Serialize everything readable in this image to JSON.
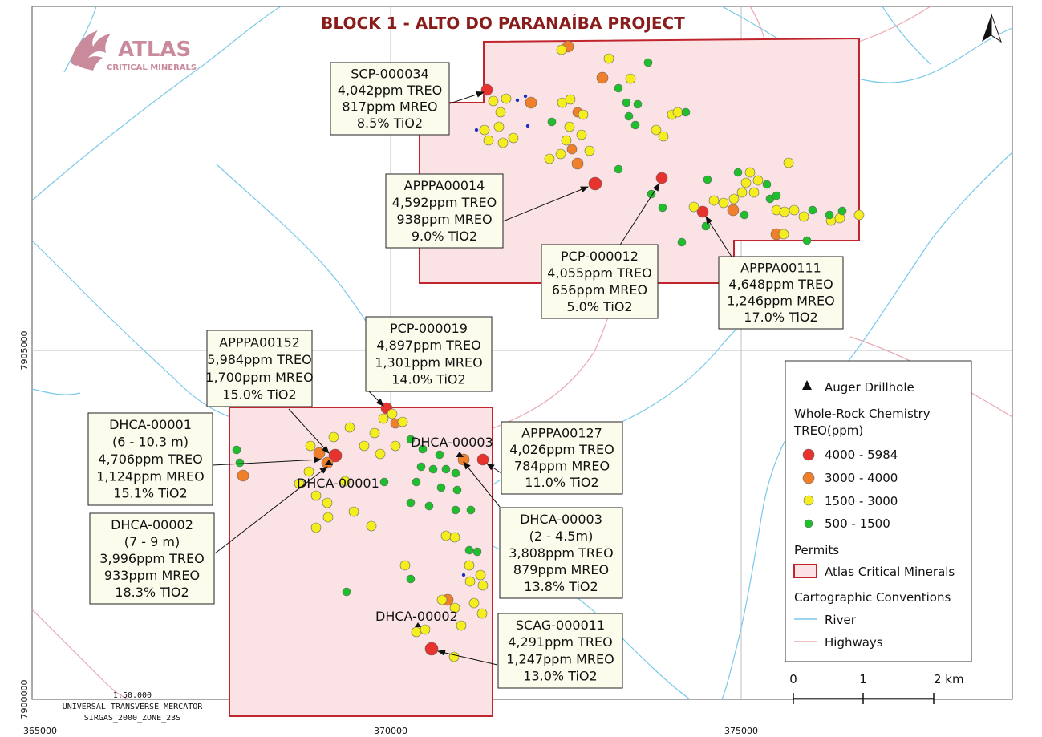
{
  "title": "BLOCK 1 - ALTO DO PARANAÍBA PROJECT",
  "logo": {
    "name": "ATLAS",
    "subtitle": "CRITICAL MINERALS"
  },
  "north_arrow": "north-arrow-icon",
  "axes": {
    "x_ticks": [
      "365000",
      "370000",
      "375000"
    ],
    "y_ticks": [
      "7905000",
      "7900000"
    ]
  },
  "projection": {
    "scale": "1:50.000",
    "system": "UNIVERSAL TRANSVERSE MERCATOR",
    "datum": "SIRGAS_2000_ZONE_23S"
  },
  "scalebar": {
    "labels": [
      "0",
      "1",
      "2 km"
    ]
  },
  "legend": {
    "drillhole": "Auger Drillhole",
    "chem_title_1": "Whole-Rock Chemistry",
    "chem_title_2": "TREO(ppm)",
    "classes": [
      {
        "label": "4000 - 5984",
        "color": "#e8322e"
      },
      {
        "label": "3000 - 4000",
        "color": "#ef7f2a"
      },
      {
        "label": "1500 - 3000",
        "color": "#f5ee1f"
      },
      {
        "label": "500 - 1500",
        "color": "#1ebe2c"
      }
    ],
    "permits_title": "Permits",
    "permit_label": "Atlas Critical Minerals",
    "conventions_title": "Cartographic Conventions",
    "river": "River",
    "highways": "Highways"
  },
  "colors": {
    "permit_fill": "#fbe3e5",
    "permit_stroke": "#c0242c",
    "river": "#7ac9e8",
    "highway": "#e9a9b0",
    "grid": "#bfbfbf",
    "label_fill": "#fcfcec"
  },
  "callouts": [
    {
      "id": "SCP-000034",
      "lines": [
        "SCP-000034",
        "4,042ppm TREO",
        "817ppm MREO",
        "8.5% TiO2"
      ]
    },
    {
      "id": "APPPA00014",
      "lines": [
        "APPPA00014",
        "4,592ppm TREO",
        "938ppm MREO",
        "9.0% TiO2"
      ]
    },
    {
      "id": "PCP-000012",
      "lines": [
        "PCP-000012",
        "4,055ppm TREO",
        "656ppm MREO",
        "5.0% TiO2"
      ]
    },
    {
      "id": "APPPA00111",
      "lines": [
        "APPPA00111",
        "4,648ppm TREO",
        "1,246ppm MREO",
        "17.0% TiO2"
      ]
    },
    {
      "id": "APPPA00152",
      "lines": [
        "APPPA00152",
        "5,984ppm TREO",
        "1,700ppm MREO",
        "15.0% TiO2"
      ]
    },
    {
      "id": "PCP-000019",
      "lines": [
        "PCP-000019",
        "4,897ppm TREO",
        "1,301ppm MREO",
        "14.0% TiO2"
      ]
    },
    {
      "id": "DHCA-00001",
      "lines": [
        "DHCA-00001",
        "(6 - 10.3 m)",
        "4,706ppm TREO",
        "1,124ppm MREO",
        "15.1% TiO2"
      ]
    },
    {
      "id": "APPPA00127",
      "lines": [
        "APPPA00127",
        "4,026ppm TREO",
        "784ppm MREO",
        "11.0% TiO2"
      ]
    },
    {
      "id": "DHCA-00002",
      "lines": [
        "DHCA-00002",
        "(7 - 9 m)",
        "3,996ppm TREO",
        "933ppm MREO",
        "18.3% TiO2"
      ]
    },
    {
      "id": "DHCA-00003",
      "lines": [
        "DHCA-00003",
        "(2 - 4.5m)",
        "3,808ppm TREO",
        "879ppm MREO",
        "13.8% TiO2"
      ]
    },
    {
      "id": "SCAG-000011",
      "lines": [
        "SCAG-000011",
        "4,291ppm TREO",
        "1,247ppm MREO",
        "13.0% TiO2"
      ]
    }
  ],
  "drillhole_labels": [
    "DHCA-00001",
    "DHCA-00003",
    "DHCA-00002"
  ]
}
